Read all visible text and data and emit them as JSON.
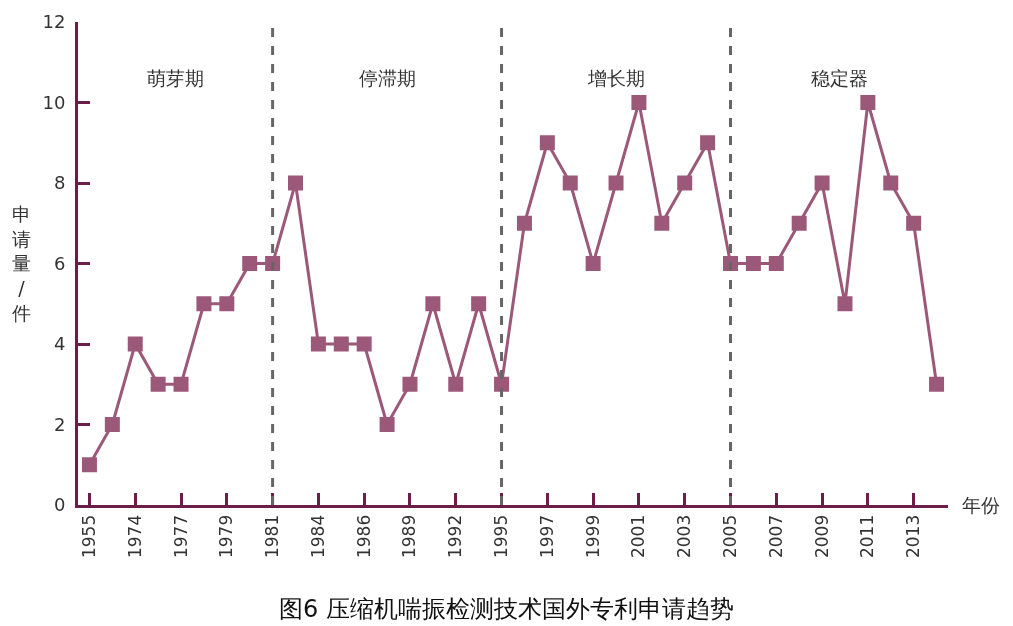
{
  "chart_data": {
    "type": "line",
    "title": "图6 压缩机喘振检测技术国外专利申请趋势",
    "xlabel": "年份",
    "ylabel": "申请量/件",
    "categories": [
      "1955",
      null,
      "1974",
      null,
      "1977",
      null,
      "1979",
      null,
      "1981",
      null,
      "1984",
      null,
      "1986",
      null,
      "1989",
      null,
      "1992",
      null,
      "1995",
      null,
      "1997",
      null,
      "1999",
      null,
      "2001",
      null,
      "2003",
      null,
      "2005",
      null,
      "2007",
      null,
      "2009",
      null,
      "2011",
      null,
      "2013",
      null
    ],
    "series": [
      {
        "color": "#9c5878",
        "values": [
          1,
          2,
          4,
          3,
          3,
          5,
          5,
          6,
          6,
          8,
          4,
          4,
          4,
          2,
          3,
          5,
          3,
          5,
          3,
          7,
          9,
          8,
          6,
          8,
          10,
          7,
          8,
          9,
          6,
          6,
          6,
          7,
          8,
          5,
          10,
          8,
          7,
          3
        ]
      }
    ],
    "ylim": [
      0,
      12
    ],
    "yticks": [
      0,
      2,
      4,
      6,
      8,
      10,
      12
    ],
    "marker": "square",
    "line_style": "solid",
    "ref_lines": [
      {
        "axis": "x",
        "value": "1981",
        "color": "#666666",
        "line_style": "dashed"
      },
      {
        "axis": "x",
        "value": "1995",
        "color": "#666666",
        "line_style": "dashed"
      },
      {
        "axis": "x",
        "value": "2005",
        "color": "#666666",
        "line_style": "dashed"
      }
    ],
    "annotations": [
      "萌芽期",
      "停滞期",
      "增长期",
      "稳定器"
    ]
  }
}
